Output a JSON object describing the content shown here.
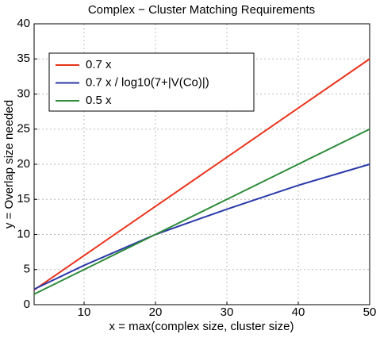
{
  "chart_data": {
    "type": "line",
    "title": "Complex − Cluster Matching Requirements",
    "x_label": "x = max(complex size, cluster size)",
    "y_label": "y = Overlap size needed",
    "x": [
      3,
      10,
      20,
      30,
      40,
      50
    ],
    "series": [
      {
        "name": "0.7 x",
        "color": "#e8341c",
        "values": [
          2.1,
          7,
          14,
          21,
          28,
          35
        ]
      },
      {
        "name": "0.7 x / log10(7+|V(Co)|)",
        "color": "#2b3aa8",
        "values": [
          2.2,
          5.6,
          10,
          13.6,
          17,
          20
        ]
      },
      {
        "name": "0.5 x",
        "color": "#2e8b3a",
        "values": [
          1.5,
          5,
          10,
          15,
          20,
          25
        ]
      }
    ],
    "xlim": [
      3,
      50
    ],
    "xticks": [
      10,
      20,
      30,
      40,
      50
    ],
    "ylim": [
      0,
      40
    ],
    "yticks": [
      0,
      5,
      10,
      15,
      20,
      25,
      30,
      35,
      40
    ],
    "grid": true,
    "legend": "upper left"
  }
}
